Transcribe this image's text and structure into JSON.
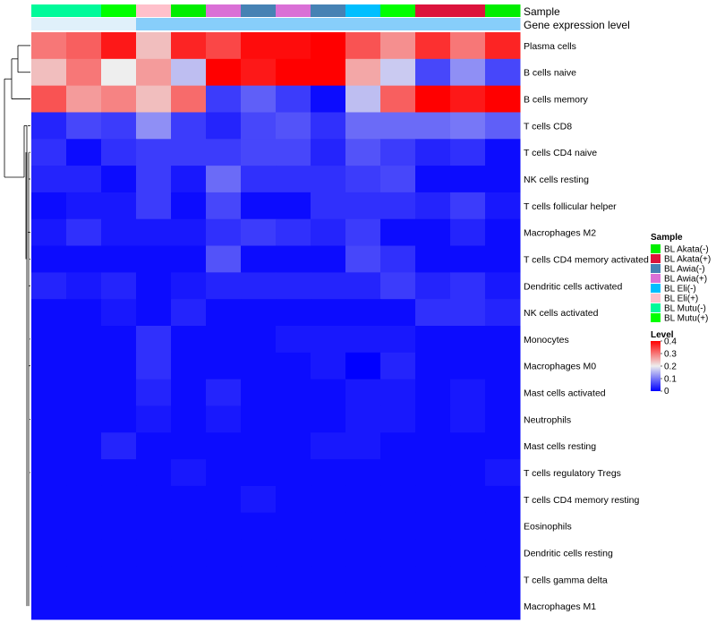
{
  "chart_data": {
    "type": "heatmap",
    "annotations": {
      "sample_track_label": "Sample",
      "expression_track_label": "Gene expression level",
      "columns": [
        {
          "sample": "BL Mutu(-)",
          "expression": "high"
        },
        {
          "sample": "BL Mutu(-)",
          "expression": "high"
        },
        {
          "sample": "BL Mutu(+)",
          "expression": "high"
        },
        {
          "sample": "BL Eli(+)",
          "expression": "low"
        },
        {
          "sample": "BL Akata(-)",
          "expression": "low"
        },
        {
          "sample": "BL Awia(+)",
          "expression": "low"
        },
        {
          "sample": "BL Awia(-)",
          "expression": "low"
        },
        {
          "sample": "BL Awia(+)",
          "expression": "low"
        },
        {
          "sample": "BL Awia(-)",
          "expression": "low"
        },
        {
          "sample": "BL Eli(-)",
          "expression": "low"
        },
        {
          "sample": "BL Mutu(+)",
          "expression": "low"
        },
        {
          "sample": "BL Akata(+)",
          "expression": "low"
        },
        {
          "sample": "BL Akata(+)",
          "expression": "low"
        },
        {
          "sample": "BL Akata(-)",
          "expression": "low"
        }
      ]
    },
    "sample_colors": {
      "BL Akata(-)": "#00ee00",
      "BL Akata(+)": "#dc143c",
      "BL Awia(-)": "#4682b4",
      "BL Awia(+)": "#da70d6",
      "BL Eli(-)": "#00bfff",
      "BL Eli(+)": "#ffc0cb",
      "BL Mutu(-)": "#00fa9a",
      "BL Mutu(+)": "#00ff00"
    },
    "expression_colors": {
      "high": "#e0f0fa",
      "low": "#87cefa"
    },
    "rows": [
      "Plasma cells",
      "B cells naive",
      "B cells memory",
      "T cells CD8",
      "T cells CD4 naive",
      "NK cells resting",
      "T cells follicular helper",
      "Macrophages M2",
      "T cells CD4 memory activated",
      "Dendritic cells activated",
      "NK cells activated",
      "Monocytes",
      "Macrophages M0",
      "Mast cells activated",
      "Neutrophils",
      "Mast cells resting",
      "T cells regulatory  Tregs",
      "T cells CD4 memory resting",
      "Eosinophils",
      "Dendritic cells resting",
      "T cells gamma delta",
      "Macrophages M1"
    ],
    "values": [
      [
        0.3,
        0.32,
        0.38,
        0.24,
        0.37,
        0.34,
        0.39,
        0.39,
        0.4,
        0.33,
        0.28,
        0.36,
        0.3,
        0.37
      ],
      [
        0.24,
        0.3,
        0.2,
        0.27,
        0.16,
        0.4,
        0.38,
        0.4,
        0.4,
        0.26,
        0.17,
        0.06,
        0.12,
        0.06
      ],
      [
        0.33,
        0.27,
        0.29,
        0.24,
        0.31,
        0.05,
        0.08,
        0.05,
        0.01,
        0.16,
        0.32,
        0.4,
        0.38,
        0.4
      ],
      [
        0.03,
        0.06,
        0.05,
        0.12,
        0.05,
        0.03,
        0.06,
        0.07,
        0.04,
        0.09,
        0.09,
        0.09,
        0.1,
        0.08
      ],
      [
        0.04,
        0.01,
        0.04,
        0.05,
        0.05,
        0.05,
        0.06,
        0.06,
        0.03,
        0.07,
        0.05,
        0.03,
        0.04,
        0.01
      ],
      [
        0.03,
        0.03,
        0.01,
        0.05,
        0.02,
        0.09,
        0.04,
        0.04,
        0.04,
        0.05,
        0.06,
        0.01,
        0.01,
        0.01
      ],
      [
        0.01,
        0.02,
        0.02,
        0.05,
        0.01,
        0.06,
        0.01,
        0.01,
        0.04,
        0.04,
        0.04,
        0.03,
        0.05,
        0.02
      ],
      [
        0.02,
        0.04,
        0.02,
        0.02,
        0.02,
        0.04,
        0.05,
        0.04,
        0.03,
        0.05,
        0.01,
        0.01,
        0.03,
        0.01
      ],
      [
        0.01,
        0.01,
        0.01,
        0.01,
        0.01,
        0.07,
        0.01,
        0.01,
        0.01,
        0.06,
        0.04,
        0.01,
        0.01,
        0.01
      ],
      [
        0.03,
        0.02,
        0.03,
        0.01,
        0.02,
        0.03,
        0.03,
        0.03,
        0.03,
        0.03,
        0.05,
        0.03,
        0.04,
        0.02
      ],
      [
        0.01,
        0.01,
        0.02,
        0.01,
        0.03,
        0.01,
        0.01,
        0.01,
        0.01,
        0.01,
        0.01,
        0.04,
        0.04,
        0.03
      ],
      [
        0.01,
        0.01,
        0.01,
        0.04,
        0.01,
        0.01,
        0.01,
        0.02,
        0.02,
        0.02,
        0.02,
        0.01,
        0.01,
        0.01
      ],
      [
        0.01,
        0.01,
        0.01,
        0.04,
        0.01,
        0.01,
        0.01,
        0.01,
        0.02,
        0.0,
        0.03,
        0.01,
        0.01,
        0.01
      ],
      [
        0.01,
        0.01,
        0.01,
        0.03,
        0.01,
        0.03,
        0.01,
        0.01,
        0.01,
        0.02,
        0.02,
        0.01,
        0.02,
        0.01
      ],
      [
        0.01,
        0.01,
        0.01,
        0.02,
        0.01,
        0.02,
        0.01,
        0.01,
        0.01,
        0.02,
        0.02,
        0.01,
        0.02,
        0.01
      ],
      [
        0.01,
        0.01,
        0.03,
        0.01,
        0.01,
        0.01,
        0.01,
        0.01,
        0.02,
        0.02,
        0.01,
        0.01,
        0.01,
        0.01
      ],
      [
        0.01,
        0.01,
        0.01,
        0.01,
        0.02,
        0.01,
        0.01,
        0.01,
        0.01,
        0.01,
        0.01,
        0.01,
        0.01,
        0.02
      ],
      [
        0.01,
        0.01,
        0.01,
        0.01,
        0.01,
        0.01,
        0.02,
        0.01,
        0.01,
        0.01,
        0.01,
        0.01,
        0.01,
        0.01
      ],
      [
        0.01,
        0.01,
        0.01,
        0.01,
        0.01,
        0.01,
        0.01,
        0.01,
        0.01,
        0.01,
        0.01,
        0.01,
        0.01,
        0.01
      ],
      [
        0.01,
        0.01,
        0.01,
        0.01,
        0.01,
        0.01,
        0.01,
        0.01,
        0.01,
        0.01,
        0.01,
        0.01,
        0.01,
        0.01
      ],
      [
        0.01,
        0.01,
        0.01,
        0.01,
        0.01,
        0.01,
        0.01,
        0.01,
        0.01,
        0.01,
        0.01,
        0.01,
        0.01,
        0.01
      ],
      [
        0.01,
        0.01,
        0.01,
        0.01,
        0.01,
        0.01,
        0.01,
        0.01,
        0.01,
        0.01,
        0.01,
        0.01,
        0.01,
        0.01
      ]
    ],
    "color_scale": {
      "min": 0,
      "max": 0.4,
      "stops": [
        {
          "value": 0,
          "color": "#0000ff"
        },
        {
          "value": 0.2,
          "color": "#eeeeee"
        },
        {
          "value": 0.4,
          "color": "#ff0000"
        }
      ]
    },
    "legend": {
      "placement": "right",
      "sample_title": "Sample",
      "sample_entries": [
        "BL Akata(-)",
        "BL Akata(+)",
        "BL Awia(-)",
        "BL Awia(+)",
        "BL Eli(-)",
        "BL Eli(+)",
        "BL Mutu(-)",
        "BL Mutu(+)"
      ],
      "level_title": "Level",
      "level_ticks": [
        "0.4",
        "0.3",
        "0.2",
        "0.1",
        "0"
      ],
      "level_tick_values": [
        0.4,
        0.3,
        0.2,
        0.1,
        0
      ]
    },
    "row_dendrogram": true
  }
}
